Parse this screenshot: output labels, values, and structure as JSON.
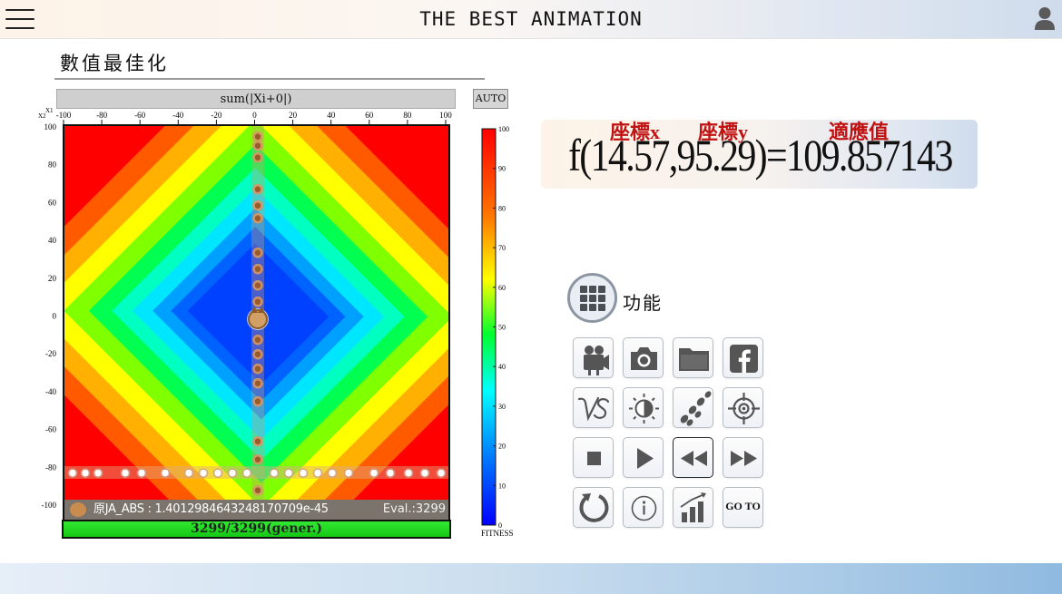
{
  "header": {
    "title": "THE BEST ANIMATION"
  },
  "page": {
    "title": "數值最佳化"
  },
  "plot": {
    "function_label": "sum(|Xi+0|)",
    "auto_label": "AUTO",
    "x_axis_name": "X1",
    "y_axis_name": "X2",
    "x_ticks": [
      "-100",
      "-80",
      "-60",
      "-40",
      "-20",
      "0",
      "20",
      "40",
      "60",
      "80",
      "100"
    ],
    "y_ticks": [
      "100",
      "80",
      "60",
      "40",
      "20",
      "0",
      "-20",
      "-40",
      "-60",
      "-80",
      "-100"
    ],
    "colorbar_ticks": [
      "100",
      "90",
      "80",
      "70",
      "60",
      "50",
      "40",
      "30",
      "20",
      "10",
      "0"
    ],
    "colorbar_label": "FITNESS",
    "status_best": "原JA_ABS : 1.4012984643248170709e-45",
    "status_eval": "Eval.:3299",
    "generation": "3299/3299(gener.)"
  },
  "formula": {
    "text": "f(14.57,95.29)=109.857143",
    "annotation_x": "座標x",
    "annotation_y": "座標y",
    "annotation_fitness": "適應值"
  },
  "functions": {
    "label": "功能",
    "goto_label": "GO TO"
  },
  "colors": {
    "accent_red": "#c11212",
    "gen_bar": "#22d822",
    "header_start": "#fdf3e8",
    "header_end": "#cfdcec"
  }
}
